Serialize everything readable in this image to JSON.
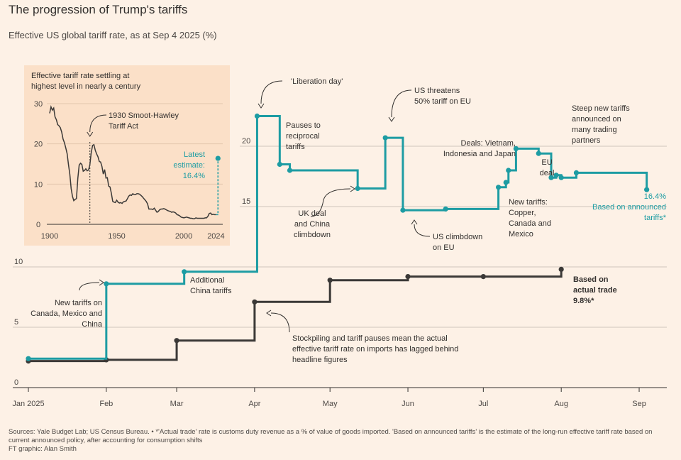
{
  "title": "The progression of Trump's tariffs",
  "subtitle": "Effective US global tariff rate, as at Sep 4 2025 (%)",
  "colors": {
    "announced": "#1d9ca3",
    "actual": "#3b3937",
    "grid": "#cfc5bc",
    "inset_bg": "#fbe0c8",
    "inset_line": "#3b3937"
  },
  "footer": {
    "sources": "Sources: Yale Budget Lab; US Census Bureau. • *'Actual trade' rate is customs duty revenue as a % of value of goods imported. 'Based on announced tariffs' is the estimate of the long-run effective tariff rate based on current announced policy, after accounting for consumption shifts",
    "credit": "FT graphic: Alan Smith"
  },
  "chart_data": [
    {
      "type": "line",
      "step": true,
      "x_domain": [
        "2025-01-01",
        "2025-09-12"
      ],
      "ylim": [
        0,
        25
      ],
      "y_ticks_left": [
        0,
        5,
        10
      ],
      "y_ticks_right": [
        15,
        20
      ],
      "x_ticks": [
        {
          "label": "Jan 2025",
          "date": "2025-01-01"
        },
        {
          "label": "Feb",
          "date": "2025-02-01"
        },
        {
          "label": "Mar",
          "date": "2025-03-01"
        },
        {
          "label": "Apr",
          "date": "2025-04-01"
        },
        {
          "label": "May",
          "date": "2025-05-01"
        },
        {
          "label": "Jun",
          "date": "2025-06-01"
        },
        {
          "label": "Jul",
          "date": "2025-07-01"
        },
        {
          "label": "Aug",
          "date": "2025-08-01"
        },
        {
          "label": "Sep",
          "date": "2025-09-01"
        }
      ],
      "series": [
        {
          "key": "announced",
          "points": [
            {
              "date": "2025-01-01",
              "value": 2.4
            },
            {
              "date": "2025-02-01",
              "value": 8.6
            },
            {
              "date": "2025-03-04",
              "value": 9.6
            },
            {
              "date": "2025-04-02",
              "value": 22.5
            },
            {
              "date": "2025-04-11",
              "value": 18.5
            },
            {
              "date": "2025-04-15",
              "value": 18.0
            },
            {
              "date": "2025-05-12",
              "value": 16.5
            },
            {
              "date": "2025-05-23",
              "value": 20.7
            },
            {
              "date": "2025-05-30",
              "value": 14.7
            },
            {
              "date": "2025-06-16",
              "value": 14.8
            },
            {
              "date": "2025-07-07",
              "value": 16.6
            },
            {
              "date": "2025-07-10",
              "value": 17.0
            },
            {
              "date": "2025-07-11",
              "value": 18.0
            },
            {
              "date": "2025-07-14",
              "value": 19.8
            },
            {
              "date": "2025-07-23",
              "value": 19.4
            },
            {
              "date": "2025-07-28",
              "value": 17.4
            },
            {
              "date": "2025-07-30",
              "value": 17.6
            },
            {
              "date": "2025-08-01",
              "value": 17.4
            },
            {
              "date": "2025-08-07",
              "value": 17.8
            },
            {
              "date": "2025-09-04",
              "value": 16.4
            }
          ]
        },
        {
          "key": "actual",
          "points": [
            {
              "date": "2025-01-01",
              "value": 2.2
            },
            {
              "date": "2025-02-01",
              "value": 2.3
            },
            {
              "date": "2025-03-01",
              "value": 3.9
            },
            {
              "date": "2025-04-01",
              "value": 7.1
            },
            {
              "date": "2025-05-01",
              "value": 8.9
            },
            {
              "date": "2025-06-01",
              "value": 9.2
            },
            {
              "date": "2025-07-01",
              "value": 9.2
            },
            {
              "date": "2025-08-01",
              "value": 9.8
            }
          ]
        }
      ],
      "annotations": {
        "liberation": "'Liberation day'",
        "pauses": [
          "Pauses to",
          "reciprocal",
          "tariffs"
        ],
        "us_threatens": [
          "US threatens",
          "50% tariff on EU"
        ],
        "deals": [
          "Deals: Vietnam,",
          "Indonesia and Japan"
        ],
        "steep": [
          "Steep new tariffs",
          "announced on",
          "many trading",
          "partners"
        ],
        "uk_deal": [
          "UK deal",
          "and China",
          "climbdown"
        ],
        "us_climbdown": [
          "US climbdown",
          "on EU"
        ],
        "new_tariffs_copper": [
          "New tariffs:",
          "Copper,",
          "Canada and",
          "Mexico"
        ],
        "eu_deal": [
          "EU",
          "deal"
        ],
        "announced_end": [
          "16.4%",
          "Based on announced",
          "tariffs*"
        ],
        "new_tariffs_canada": [
          "New tariffs on",
          "Canada, Mexico and",
          "China"
        ],
        "additional_china": [
          "Additional",
          "China tariffs"
        ],
        "actual_end": [
          "Based on",
          "actual trade",
          "9.8%*"
        ],
        "stockpiling": [
          "Stockpiling and tariff pauses mean the actual",
          "effective tariff rate on imports has lagged behind",
          "headline figures"
        ]
      }
    },
    {
      "type": "line",
      "title": [
        "Effective tariff rate settling at",
        "highest level in nearly a century"
      ],
      "xlim": [
        1900,
        2028
      ],
      "ylim": [
        0,
        30
      ],
      "y_ticks": [
        0,
        10,
        20,
        30
      ],
      "x_ticks": [
        1900,
        1950,
        2000,
        2024
      ],
      "marker_year": 1930,
      "marker_label": [
        "1930 Smoot-Hawley",
        "Tariff Act"
      ],
      "latest_label": [
        "Latest",
        "estimate:",
        "16.4%"
      ],
      "latest_value": 16.4,
      "history": [
        [
          1900,
          27.6
        ],
        [
          1901,
          29.2
        ],
        [
          1902,
          28.4
        ],
        [
          1903,
          28.9
        ],
        [
          1904,
          26.7
        ],
        [
          1905,
          26.0
        ],
        [
          1906,
          24.8
        ],
        [
          1907,
          24.5
        ],
        [
          1908,
          24.0
        ],
        [
          1909,
          22.9
        ],
        [
          1910,
          21.2
        ],
        [
          1911,
          20.3
        ],
        [
          1912,
          19.0
        ],
        [
          1913,
          17.6
        ],
        [
          1914,
          14.9
        ],
        [
          1915,
          12.5
        ],
        [
          1916,
          8.9
        ],
        [
          1917,
          7.0
        ],
        [
          1918,
          5.9
        ],
        [
          1919,
          6.2
        ],
        [
          1920,
          6.4
        ],
        [
          1921,
          11.4
        ],
        [
          1922,
          14.7
        ],
        [
          1923,
          15.2
        ],
        [
          1924,
          14.9
        ],
        [
          1925,
          13.2
        ],
        [
          1926,
          13.4
        ],
        [
          1927,
          13.8
        ],
        [
          1928,
          13.3
        ],
        [
          1929,
          13.5
        ],
        [
          1930,
          14.8
        ],
        [
          1931,
          17.8
        ],
        [
          1932,
          19.6
        ],
        [
          1933,
          19.8
        ],
        [
          1934,
          18.4
        ],
        [
          1935,
          17.5
        ],
        [
          1936,
          16.8
        ],
        [
          1937,
          15.6
        ],
        [
          1938,
          15.5
        ],
        [
          1939,
          14.4
        ],
        [
          1940,
          12.5
        ],
        [
          1941,
          13.6
        ],
        [
          1942,
          11.5
        ],
        [
          1943,
          11.6
        ],
        [
          1944,
          9.5
        ],
        [
          1945,
          9.3
        ],
        [
          1946,
          7.7
        ],
        [
          1947,
          5.7
        ],
        [
          1948,
          5.5
        ],
        [
          1949,
          5.4
        ],
        [
          1950,
          6.0
        ],
        [
          1951,
          5.5
        ],
        [
          1952,
          5.3
        ],
        [
          1953,
          5.4
        ],
        [
          1954,
          5.2
        ],
        [
          1955,
          5.6
        ],
        [
          1956,
          5.7
        ],
        [
          1957,
          5.8
        ],
        [
          1958,
          6.4
        ],
        [
          1959,
          7.0
        ],
        [
          1960,
          7.3
        ],
        [
          1961,
          7.2
        ],
        [
          1962,
          7.6
        ],
        [
          1963,
          7.4
        ],
        [
          1964,
          7.4
        ],
        [
          1965,
          7.6
        ],
        [
          1966,
          7.6
        ],
        [
          1967,
          7.5
        ],
        [
          1968,
          7.2
        ],
        [
          1969,
          6.9
        ],
        [
          1970,
          6.5
        ],
        [
          1971,
          6.1
        ],
        [
          1972,
          5.7
        ],
        [
          1973,
          5.1
        ],
        [
          1974,
          3.8
        ],
        [
          1975,
          3.8
        ],
        [
          1976,
          3.8
        ],
        [
          1977,
          3.7
        ],
        [
          1978,
          4.0
        ],
        [
          1979,
          3.5
        ],
        [
          1980,
          3.0
        ],
        [
          1981,
          3.2
        ],
        [
          1982,
          3.6
        ],
        [
          1983,
          3.8
        ],
        [
          1984,
          3.8
        ],
        [
          1985,
          3.9
        ],
        [
          1986,
          3.8
        ],
        [
          1987,
          3.6
        ],
        [
          1988,
          3.4
        ],
        [
          1989,
          3.3
        ],
        [
          1990,
          3.2
        ],
        [
          1991,
          3.0
        ],
        [
          1992,
          3.1
        ],
        [
          1993,
          3.0
        ],
        [
          1994,
          2.8
        ],
        [
          1995,
          2.4
        ],
        [
          1996,
          2.3
        ],
        [
          1997,
          2.1
        ],
        [
          1998,
          1.8
        ],
        [
          1999,
          1.7
        ],
        [
          2000,
          1.6
        ],
        [
          2001,
          1.7
        ],
        [
          2002,
          1.8
        ],
        [
          2003,
          1.7
        ],
        [
          2004,
          1.6
        ],
        [
          2005,
          1.5
        ],
        [
          2006,
          1.5
        ],
        [
          2007,
          1.4
        ],
        [
          2008,
          1.4
        ],
        [
          2009,
          1.6
        ],
        [
          2010,
          1.5
        ],
        [
          2011,
          1.5
        ],
        [
          2012,
          1.5
        ],
        [
          2013,
          1.5
        ],
        [
          2014,
          1.5
        ],
        [
          2015,
          1.5
        ],
        [
          2016,
          1.6
        ],
        [
          2017,
          1.6
        ],
        [
          2018,
          2.0
        ],
        [
          2019,
          2.7
        ],
        [
          2020,
          2.8
        ],
        [
          2021,
          2.4
        ],
        [
          2022,
          2.5
        ],
        [
          2023,
          2.4
        ],
        [
          2024,
          2.4
        ]
      ]
    }
  ]
}
